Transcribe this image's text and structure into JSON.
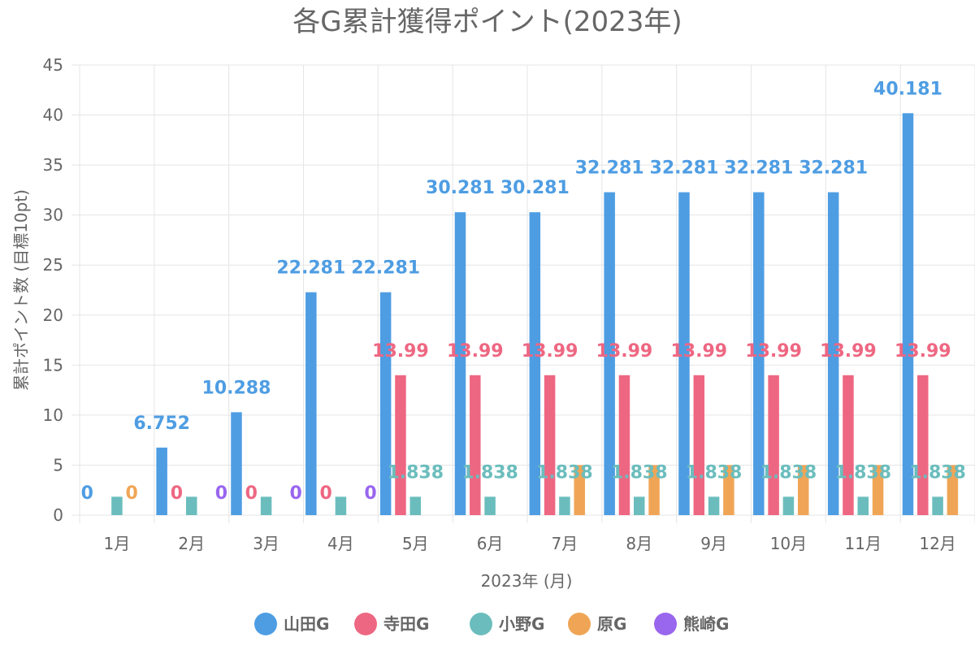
{
  "chart_data": {
    "type": "bar",
    "title": "各G累計獲得ポイント(2023年)",
    "xlabel": "2023年 (月)",
    "ylabel": "累計ポイント数 (目標10pt)",
    "ylim": [
      0,
      45
    ],
    "yticks": [
      0,
      5,
      10,
      15,
      20,
      25,
      30,
      35,
      40,
      45
    ],
    "grid": true,
    "legend_position": "bottom",
    "categories": [
      "1月",
      "2月",
      "3月",
      "4月",
      "5月",
      "6月",
      "7月",
      "8月",
      "9月",
      "10月",
      "11月",
      "12月"
    ],
    "series": [
      {
        "name": "山田G",
        "color": "#4e9de3",
        "values": [
          0,
          6.752,
          10.288,
          22.281,
          22.281,
          30.281,
          30.281,
          32.281,
          32.281,
          32.281,
          32.281,
          40.181
        ],
        "labels": [
          "0",
          "6.752",
          "10.288",
          "22.281",
          "22.281",
          "30.281",
          "30.281",
          "32.281",
          "32.281",
          "32.281",
          "32.281",
          "40.181"
        ]
      },
      {
        "name": "寺田G",
        "color": "#ee6782",
        "values": [
          null,
          0,
          0,
          0,
          13.99,
          13.99,
          13.99,
          13.99,
          13.99,
          13.99,
          13.99,
          13.99
        ],
        "labels": [
          null,
          "0",
          "0",
          "0",
          "13.99",
          "13.99",
          "13.99",
          "13.99",
          "13.99",
          "13.99",
          "13.99",
          "13.99"
        ]
      },
      {
        "name": "小野G",
        "color": "#6bbdbd",
        "values": [
          1.838,
          1.838,
          1.838,
          1.838,
          1.838,
          1.838,
          1.838,
          1.838,
          1.838,
          1.838,
          1.838,
          1.838
        ],
        "labels": [
          null,
          null,
          null,
          null,
          "1.838",
          "1.838",
          "1.838",
          "1.838",
          "1.838",
          "1.838",
          "1.838",
          "1.838"
        ]
      },
      {
        "name": "原G",
        "color": "#f0a556",
        "values": [
          0,
          null,
          null,
          null,
          null,
          null,
          5,
          5,
          5,
          5,
          5,
          5
        ],
        "labels": [
          "0",
          null,
          null,
          null,
          null,
          null,
          null,
          null,
          null,
          null,
          null,
          null
        ]
      },
      {
        "name": "熊崎G",
        "color": "#9966ee",
        "values": [
          null,
          0,
          0,
          0,
          null,
          null,
          null,
          null,
          null,
          null,
          null,
          null
        ],
        "labels": [
          null,
          "0",
          "0",
          "0",
          null,
          null,
          null,
          null,
          null,
          null,
          null,
          null
        ]
      }
    ]
  }
}
